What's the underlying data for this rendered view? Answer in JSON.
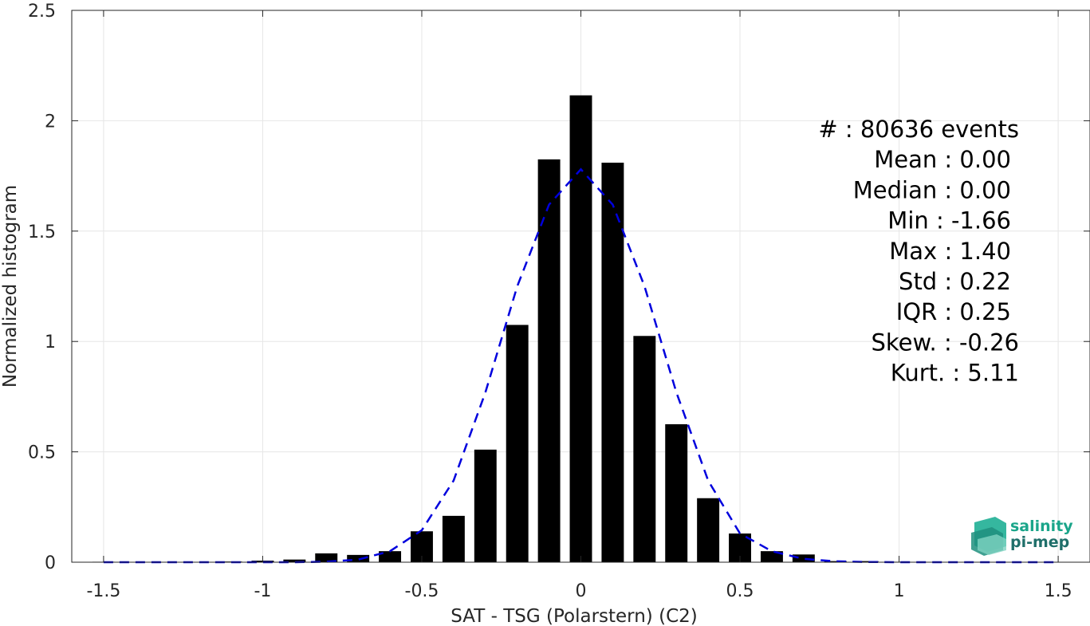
{
  "chart_data": {
    "type": "bar",
    "xlabel": "SAT - TSG (Polarstern) (C2)",
    "ylabel": "Normalized histogram",
    "xlim": [
      -1.6,
      1.6
    ],
    "ylim": [
      0,
      2.5
    ],
    "xticks": [
      -1.5,
      -1,
      -0.5,
      0,
      0.5,
      1,
      1.5
    ],
    "xtick_labels": [
      "-1.5",
      "-1",
      "-0.5",
      "0",
      "0.5",
      "1",
      "1.5"
    ],
    "yticks": [
      0,
      0.5,
      1,
      1.5,
      2,
      2.5
    ],
    "ytick_labels": [
      "0",
      "0.5",
      "1",
      "1.5",
      "2",
      "2.5"
    ],
    "grid": true,
    "bar_width": 0.07,
    "bars": {
      "x": [
        -1.5,
        -1.4,
        -1.3,
        -1.2,
        -1.1,
        -1.0,
        -0.9,
        -0.8,
        -0.7,
        -0.6,
        -0.5,
        -0.4,
        -0.3,
        -0.2,
        -0.1,
        0.0,
        0.1,
        0.2,
        0.3,
        0.4,
        0.5,
        0.6,
        0.7,
        0.8,
        0.9,
        1.0,
        1.1,
        1.2,
        1.3,
        1.4,
        1.5
      ],
      "values": [
        0.002,
        0.0,
        0.0,
        0.001,
        0.003,
        0.007,
        0.012,
        0.04,
        0.033,
        0.05,
        0.14,
        0.21,
        0.51,
        1.075,
        1.825,
        2.115,
        1.81,
        1.025,
        0.625,
        0.29,
        0.13,
        0.05,
        0.035,
        0.005,
        0.005,
        0.002,
        0.001,
        0.0,
        0.0,
        0.0,
        0.0
      ]
    },
    "fit_curve": {
      "style": "dashed",
      "color": "#0000dd",
      "x": [
        -1.5,
        -1.4,
        -1.3,
        -1.2,
        -1.1,
        -1.0,
        -0.9,
        -0.8,
        -0.7,
        -0.6,
        -0.5,
        -0.4,
        -0.3,
        -0.2,
        -0.1,
        0.0,
        0.1,
        0.2,
        0.3,
        0.4,
        0.5,
        0.6,
        0.7,
        0.8,
        0.9,
        1.0,
        1.1,
        1.2,
        1.3,
        1.4,
        1.5
      ],
      "values": [
        0.0,
        0.0,
        0.0,
        0.0,
        0.0,
        0.0,
        0.0,
        0.002,
        0.012,
        0.05,
        0.145,
        0.37,
        0.77,
        1.25,
        1.62,
        1.78,
        1.62,
        1.25,
        0.77,
        0.37,
        0.13,
        0.05,
        0.015,
        0.004,
        0.001,
        0.0,
        0.0,
        0.0,
        0.0,
        0.0,
        0.0
      ]
    },
    "bar_color": "#000000"
  },
  "stats": [
    {
      "label": "#  : 80636 events"
    },
    {
      "label": "Mean : 0.00"
    },
    {
      "label": "Median : 0.00"
    },
    {
      "label": "Min : -1.66"
    },
    {
      "label": "Max : 1.40"
    },
    {
      "label": "Std : 0.22"
    },
    {
      "label": "IQR : 0.25"
    },
    {
      "label": "Skew. : -0.26"
    },
    {
      "label": "Kurt. : 5.11"
    }
  ],
  "logo": {
    "line1": "salinity",
    "line2": "pi-mep",
    "color1": "#1aa58a",
    "color2": "#1f6f6a"
  }
}
